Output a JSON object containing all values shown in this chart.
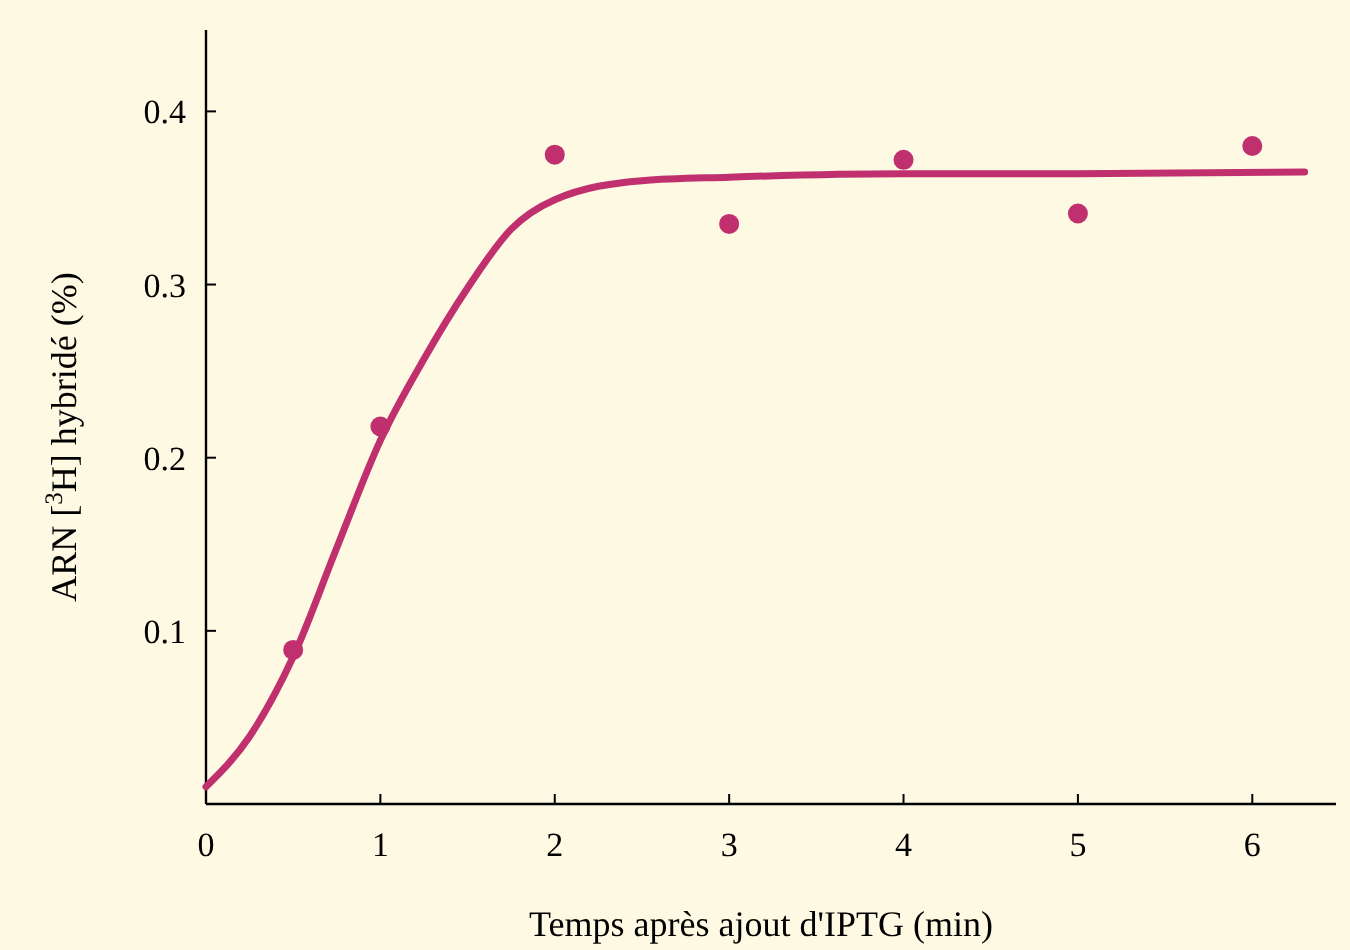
{
  "chart_data": {
    "type": "scatter",
    "xlabel": "Temps après ajout d'IPTG (min)",
    "ylabel": "ARN [$^{3}$H] hybridé (%)",
    "xlim": [
      0,
      6.48
    ],
    "ylim": [
      0,
      0.447
    ],
    "xticks": [
      0,
      1,
      2,
      3,
      4,
      5,
      6
    ],
    "yticks": [
      0.1,
      0.2,
      0.3,
      0.4
    ],
    "grid": false,
    "series": [
      {
        "color": "#c0306e",
        "marker": "circle",
        "x": [
          0.5,
          1,
          2,
          3,
          4,
          5,
          6
        ],
        "values": [
          0.089,
          0.218,
          0.375,
          0.335,
          0.372,
          0.341,
          0.38
        ]
      },
      {
        "type": "line",
        "color": "#c0306e",
        "marker": "none",
        "line_style": "solid",
        "x": [
          0,
          0.25,
          0.5,
          0.75,
          1,
          1.25,
          1.5,
          1.75,
          2,
          2.5,
          3,
          4,
          5,
          6.3
        ],
        "values": [
          0.01,
          0.039,
          0.085,
          0.148,
          0.21,
          0.257,
          0.298,
          0.332,
          0.349,
          0.36,
          0.362,
          0.364,
          0.364,
          0.365
        ]
      }
    ]
  }
}
